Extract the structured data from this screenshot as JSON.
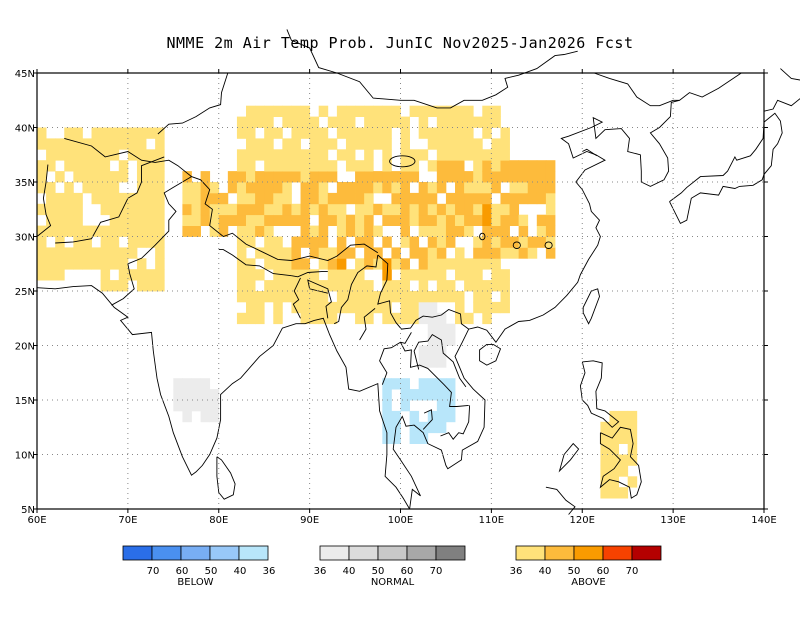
{
  "title": "NMME 2m Air Temp Prob. JunIC  Nov2025-Jan2026 Fcst",
  "map": {
    "lon_range": [
      60,
      140
    ],
    "lat_range": [
      5,
      45
    ],
    "x_ticks": [
      "60E",
      "70E",
      "80E",
      "90E",
      "100E",
      "110E",
      "120E",
      "130E",
      "140E"
    ],
    "y_ticks": [
      "45N",
      "40N",
      "35N",
      "30N",
      "25N",
      "20N",
      "15N",
      "10N",
      "5N"
    ],
    "grid": "dotted",
    "regions": [
      {
        "category": "above",
        "level": "40-50",
        "lon": [
          88,
          104
        ],
        "lat": [
          27,
          36
        ]
      },
      {
        "category": "above",
        "level": "40-50",
        "lon": [
          76,
          90
        ],
        "lat": [
          30,
          36
        ]
      },
      {
        "category": "above",
        "level": "40-50",
        "lon": [
          104,
          117
        ],
        "lat": [
          28,
          37
        ]
      },
      {
        "category": "above",
        "level": "36-40",
        "lon": [
          60,
          74
        ],
        "lat": [
          25,
          40
        ]
      },
      {
        "category": "above",
        "level": "36-40",
        "lon": [
          82,
          112
        ],
        "lat": [
          22,
          42
        ]
      },
      {
        "category": "above",
        "level": "50-60",
        "lon": [
          93,
          94
        ],
        "lat": [
          27,
          28
        ]
      },
      {
        "category": "above",
        "level": "50-60",
        "lon": [
          98,
          99
        ],
        "lat": [
          26.5,
          27.5
        ]
      },
      {
        "category": "above",
        "level": "50-60",
        "lon": [
          109,
          110
        ],
        "lat": [
          31.5,
          32.5
        ]
      },
      {
        "category": "below",
        "level": "36-40",
        "lon": [
          98,
          106
        ],
        "lat": [
          11,
          17
        ]
      },
      {
        "category": "normal",
        "level": "36-40",
        "lon": [
          75,
          80
        ],
        "lat": [
          13,
          17
        ]
      },
      {
        "category": "normal",
        "level": "36-40",
        "lon": [
          102,
          106
        ],
        "lat": [
          18,
          24
        ]
      },
      {
        "category": "above",
        "level": "36-40",
        "lon": [
          121,
          126
        ],
        "lat": [
          6,
          14
        ]
      }
    ]
  },
  "colorbar": {
    "below": {
      "label": "BELOW",
      "colors": [
        "#2a6ee8",
        "#4a90f0",
        "#78aef4",
        "#98c8f8",
        "#b8e6fa"
      ],
      "ticks": [
        "70",
        "60",
        "50",
        "40",
        "36"
      ]
    },
    "normal": {
      "label": "NORMAL",
      "colors": [
        "#ececec",
        "#dcdcdc",
        "#c8c8c8",
        "#a8a8a8",
        "#808080"
      ],
      "ticks": [
        "36",
        "40",
        "50",
        "60",
        "70"
      ]
    },
    "above": {
      "label": "ABOVE",
      "colors": [
        "#ffe27a",
        "#fdbb3c",
        "#f99b00",
        "#f74200",
        "#b40000"
      ],
      "ticks": [
        "36",
        "40",
        "50",
        "60",
        "70"
      ]
    }
  }
}
